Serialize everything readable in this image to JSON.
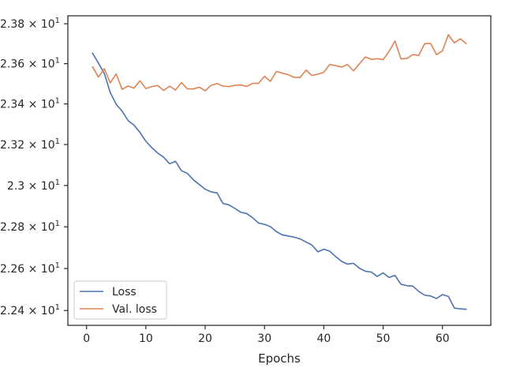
{
  "chart_data": {
    "type": "line",
    "title": "",
    "xlabel": "Epochs",
    "ylabel": "",
    "xlim": [
      -3.15,
      68.15
    ],
    "ylim": [
      22.33,
      23.84
    ],
    "y_scale": "log",
    "grid": false,
    "legend_position": "lower-left",
    "x_ticks": [
      {
        "value": 0,
        "label": "0"
      },
      {
        "value": 10,
        "label": "10"
      },
      {
        "value": 20,
        "label": "20"
      },
      {
        "value": 30,
        "label": "30"
      },
      {
        "value": 40,
        "label": "40"
      },
      {
        "value": 50,
        "label": "50"
      },
      {
        "value": 60,
        "label": "60"
      }
    ],
    "y_ticks": [
      {
        "value": 22.4,
        "mantissa": "2.24",
        "base": "10",
        "exp": "1"
      },
      {
        "value": 22.6,
        "mantissa": "2.26",
        "base": "10",
        "exp": "1"
      },
      {
        "value": 22.8,
        "mantissa": "2.28",
        "base": "10",
        "exp": "1"
      },
      {
        "value": 23.0,
        "mantissa": "2.3",
        "base": "10",
        "exp": "1"
      },
      {
        "value": 23.2,
        "mantissa": "2.32",
        "base": "10",
        "exp": "1"
      },
      {
        "value": 23.4,
        "mantissa": "2.34",
        "base": "10",
        "exp": "1"
      },
      {
        "value": 23.6,
        "mantissa": "2.36",
        "base": "10",
        "exp": "1"
      },
      {
        "value": 23.8,
        "mantissa": "2.38",
        "base": "10",
        "exp": "1"
      }
    ],
    "x": [
      1,
      2,
      3,
      4,
      5,
      6,
      7,
      8,
      9,
      10,
      11,
      12,
      13,
      14,
      15,
      16,
      17,
      18,
      19,
      20,
      21,
      22,
      23,
      24,
      25,
      26,
      27,
      28,
      29,
      30,
      31,
      32,
      33,
      34,
      35,
      36,
      37,
      38,
      39,
      40,
      41,
      42,
      43,
      44,
      45,
      46,
      47,
      48,
      49,
      50,
      51,
      52,
      53,
      54,
      55,
      56,
      57,
      58,
      59,
      60,
      61,
      62,
      63,
      64
    ],
    "series": [
      {
        "name": "Loss",
        "color": "#4c72b0",
        "values": [
          23.653,
          23.603,
          23.551,
          23.456,
          23.398,
          23.364,
          23.318,
          23.295,
          23.26,
          23.216,
          23.185,
          23.158,
          23.138,
          23.106,
          23.118,
          23.072,
          23.059,
          23.028,
          23.005,
          22.982,
          22.969,
          22.964,
          22.913,
          22.906,
          22.889,
          22.87,
          22.864,
          22.844,
          22.818,
          22.812,
          22.801,
          22.777,
          22.761,
          22.756,
          22.75,
          22.742,
          22.727,
          22.712,
          22.68,
          22.692,
          22.683,
          22.657,
          22.634,
          22.621,
          22.625,
          22.601,
          22.587,
          22.583,
          22.562,
          22.579,
          22.557,
          22.567,
          22.525,
          22.518,
          22.516,
          22.491,
          22.473,
          22.469,
          22.457,
          22.476,
          22.467,
          22.412,
          22.408,
          22.406
        ]
      },
      {
        "name": "Val. loss",
        "color": "#dd8452",
        "values": [
          23.585,
          23.533,
          23.575,
          23.504,
          23.549,
          23.472,
          23.489,
          23.478,
          23.515,
          23.476,
          23.486,
          23.491,
          23.467,
          23.488,
          23.469,
          23.506,
          23.475,
          23.474,
          23.483,
          23.465,
          23.492,
          23.501,
          23.488,
          23.486,
          23.492,
          23.494,
          23.487,
          23.502,
          23.502,
          23.537,
          23.512,
          23.561,
          23.553,
          23.545,
          23.532,
          23.531,
          23.568,
          23.541,
          23.548,
          23.557,
          23.596,
          23.59,
          23.583,
          23.596,
          23.564,
          23.599,
          23.634,
          23.621,
          23.625,
          23.62,
          23.661,
          23.713,
          23.624,
          23.626,
          23.645,
          23.641,
          23.7,
          23.701,
          23.645,
          23.664,
          23.745,
          23.704,
          23.724,
          23.7
        ]
      }
    ]
  }
}
